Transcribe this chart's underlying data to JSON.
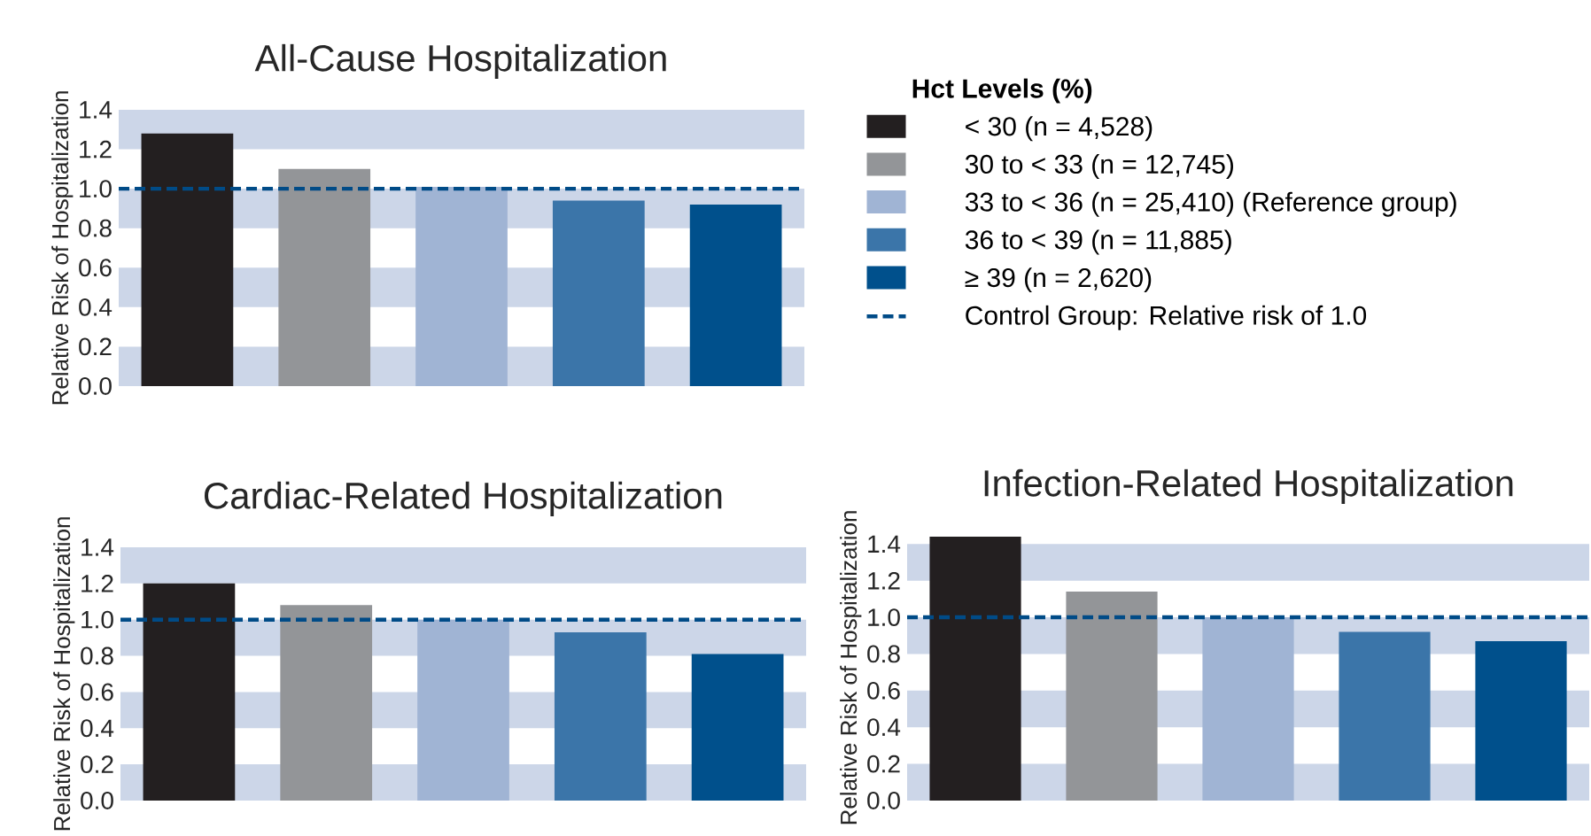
{
  "chart_data": [
    {
      "type": "bar",
      "title": "All-Cause Hospitalization",
      "ylabel": "Relative Risk of Hospitalization",
      "legend": "right",
      "legend_title": "**Hct Levels  (%)**",
      "categories": [
        null,
        null,
        null,
        null,
        null
      ],
      "series": [
        {
          "name": "< 30 (n = 4,528)",
          "color": "#231f20",
          "values": [
            1.28,
            null,
            null,
            null,
            null
          ]
        },
        {
          "name": "30 to < 33 (n = 12,745)",
          "color": "#939598",
          "values": [
            null,
            1.1,
            null,
            null,
            null
          ]
        },
        {
          "name": "33 to < 36 (n = 25,410) (Reference group)",
          "color": "#a0b4d4",
          "values": [
            null,
            null,
            1.01,
            null,
            null
          ]
        },
        {
          "name": "36 to < 39 (n = 11,885)",
          "color": "#3b75a9",
          "values": [
            null,
            null,
            null,
            0.94,
            null
          ]
        },
        {
          "name": "≥ 39 (n = 2,620)",
          "color": "#00508c",
          "values": [
            null,
            null,
            null,
            null,
            0.92
          ]
        }
      ],
      "ylim": [
        0,
        1.4
      ],
      "yticks": [
        {
          "value": 0,
          "label": "0.0"
        },
        {
          "value": 0.2,
          "label": "0.2"
        },
        {
          "value": 0.4,
          "label": "0.4"
        },
        {
          "value": 0.6,
          "label": "0.6"
        },
        {
          "value": 0.8,
          "label": "0.8"
        },
        {
          "value": 1.0,
          "label": "1.0"
        },
        {
          "value": 1.2,
          "label": "1.2"
        },
        {
          "value": 1.4,
          "label": "1.4"
        }
      ],
      "bands": [
        {
          "axis": "y",
          "from": 0,
          "to": 0.2,
          "color": "#ccd6e8"
        },
        {
          "axis": "y",
          "from": 0.4,
          "to": 0.6,
          "color": "#ccd6e8"
        },
        {
          "axis": "y",
          "from": 0.8,
          "to": 1.0,
          "color": "#ccd6e8"
        },
        {
          "axis": "y",
          "from": 1.2,
          "to": 1.4,
          "color": "#ccd6e8"
        }
      ],
      "ref_lines": [
        {
          "axis": "y",
          "value": 1.0,
          "label": "Control Group: Relative risk of 1.0",
          "color": "#004b87",
          "line_style": "dashed"
        }
      ]
    },
    {
      "type": "bar",
      "title": "Cardiac-Related Hospitalization",
      "ylabel": "Relative Risk of Hospitalization",
      "categories": [
        null,
        null,
        null,
        null,
        null
      ],
      "series": [
        {
          "color": "#231f20",
          "values": [
            1.2,
            null,
            null,
            null,
            null
          ]
        },
        {
          "color": "#939598",
          "values": [
            null,
            1.08,
            null,
            null,
            null
          ]
        },
        {
          "color": "#a0b4d4",
          "values": [
            null,
            null,
            1.0,
            null,
            null
          ]
        },
        {
          "color": "#3b75a9",
          "values": [
            null,
            null,
            null,
            0.93,
            null
          ]
        },
        {
          "color": "#00508c",
          "values": [
            null,
            null,
            null,
            null,
            0.81
          ]
        }
      ],
      "ylim": [
        0,
        1.4
      ],
      "yticks": [
        {
          "value": 0,
          "label": "0.0"
        },
        {
          "value": 0.2,
          "label": "0.2"
        },
        {
          "value": 0.4,
          "label": "0.4"
        },
        {
          "value": 0.6,
          "label": "0.6"
        },
        {
          "value": 0.8,
          "label": "0.8"
        },
        {
          "value": 1.0,
          "label": "1.0"
        },
        {
          "value": 1.2,
          "label": "1.2"
        },
        {
          "value": 1.4,
          "label": "1.4"
        }
      ],
      "bands": [
        {
          "axis": "y",
          "from": 0,
          "to": 0.2,
          "color": "#ccd6e8"
        },
        {
          "axis": "y",
          "from": 0.4,
          "to": 0.6,
          "color": "#ccd6e8"
        },
        {
          "axis": "y",
          "from": 0.8,
          "to": 1.0,
          "color": "#ccd6e8"
        },
        {
          "axis": "y",
          "from": 1.2,
          "to": 1.4,
          "color": "#ccd6e8"
        }
      ],
      "ref_lines": [
        {
          "axis": "y",
          "value": 1.0,
          "color": "#004b87",
          "line_style": "dashed"
        }
      ]
    },
    {
      "type": "bar",
      "title": "Infection-Related Hospitalization",
      "ylabel": "Relative Risk of Hospitalization",
      "categories": [
        null,
        null,
        null,
        null,
        null
      ],
      "series": [
        {
          "color": "#231f20",
          "values": [
            1.44,
            null,
            null,
            null,
            null
          ]
        },
        {
          "color": "#939598",
          "values": [
            null,
            1.14,
            null,
            null,
            null
          ]
        },
        {
          "color": "#a0b4d4",
          "values": [
            null,
            null,
            1.0,
            null,
            null
          ]
        },
        {
          "color": "#3b75a9",
          "values": [
            null,
            null,
            null,
            0.92,
            null
          ]
        },
        {
          "color": "#00508c",
          "values": [
            null,
            null,
            null,
            null,
            0.87
          ]
        }
      ],
      "ylim": [
        0,
        1.45
      ],
      "yticks": [
        {
          "value": 0,
          "label": "0.0"
        },
        {
          "value": 0.2,
          "label": "0.2"
        },
        {
          "value": 0.4,
          "label": "0.4"
        },
        {
          "value": 0.6,
          "label": "0.6"
        },
        {
          "value": 0.8,
          "label": "0.8"
        },
        {
          "value": 1.0,
          "label": "1.0"
        },
        {
          "value": 1.2,
          "label": "1.2"
        },
        {
          "value": 1.4,
          "label": "1.4"
        }
      ],
      "bands": [
        {
          "axis": "y",
          "from": 0,
          "to": 0.2,
          "color": "#ccd6e8"
        },
        {
          "axis": "y",
          "from": 0.4,
          "to": 0.6,
          "color": "#ccd6e8"
        },
        {
          "axis": "y",
          "from": 0.8,
          "to": 1.0,
          "color": "#ccd6e8"
        },
        {
          "axis": "y",
          "from": 1.2,
          "to": 1.4,
          "color": "#ccd6e8"
        }
      ],
      "ref_lines": [
        {
          "axis": "y",
          "value": 1.0,
          "color": "#004b87",
          "line_style": "dashed"
        }
      ]
    }
  ]
}
